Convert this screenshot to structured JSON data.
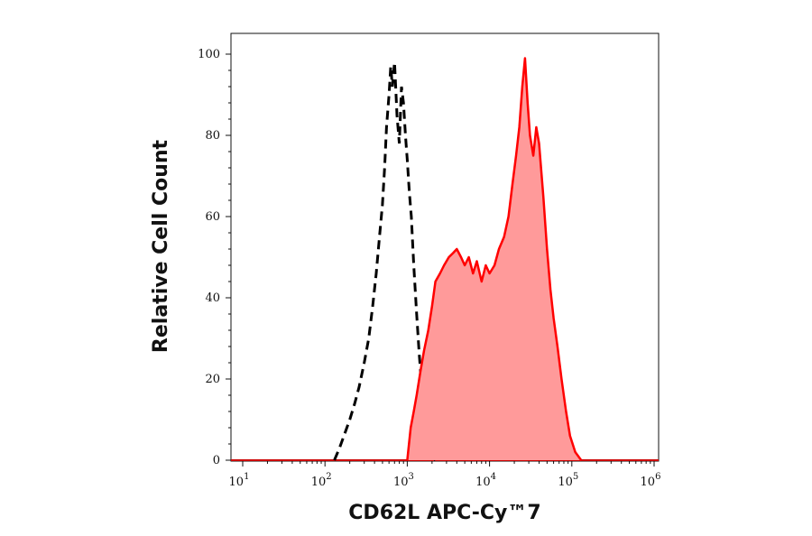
{
  "chart_data": {
    "type": "area",
    "xlabel": "CD62L APC-Cy™7",
    "ylabel": "Relative Cell Count",
    "x_scale": "log",
    "xlim": [
      10,
      1000000
    ],
    "ylim": [
      0,
      100
    ],
    "grid": false,
    "y_ticks": [
      0,
      20,
      40,
      60,
      80,
      100
    ],
    "x_ticks": [
      {
        "base": "10",
        "exp": "1"
      },
      {
        "base": "10",
        "exp": "2"
      },
      {
        "base": "10",
        "exp": "3"
      },
      {
        "base": "10",
        "exp": "4"
      },
      {
        "base": "10",
        "exp": "5"
      },
      {
        "base": "10",
        "exp": "6"
      }
    ],
    "series": [
      {
        "style": "dashed-line",
        "color": "#000000",
        "x": [
          130,
          150,
          170,
          200,
          230,
          260,
          300,
          340,
          380,
          420,
          460,
          500,
          530,
          560,
          600,
          630,
          660,
          700,
          750,
          800,
          850,
          900,
          950,
          1000,
          1060,
          1120,
          1200,
          1300,
          1400,
          1500,
          1600,
          1700,
          1800,
          1900,
          2000,
          2200
        ],
        "y": [
          0,
          3,
          6,
          10,
          14,
          18,
          24,
          30,
          38,
          46,
          55,
          63,
          72,
          82,
          90,
          97,
          92,
          98,
          85,
          78,
          92,
          88,
          80,
          74,
          66,
          60,
          48,
          36,
          26,
          18,
          12,
          8,
          5,
          3,
          1,
          0
        ]
      },
      {
        "style": "filled-area",
        "color": "#ff0000",
        "fill": "#ff9a9a",
        "x": [
          1000,
          1100,
          1200,
          1300,
          1450,
          1600,
          1800,
          2000,
          2200,
          2500,
          2800,
          3200,
          3600,
          4000,
          4500,
          5000,
          5600,
          6300,
          7000,
          8000,
          9000,
          10000,
          11500,
          13000,
          15000,
          17000,
          19000,
          21000,
          23000,
          25000,
          27000,
          29000,
          31000,
          34000,
          37000,
          40000,
          45000,
          50000,
          55000,
          60000,
          67000,
          75000,
          85000,
          95000,
          110000,
          130000
        ],
        "y": [
          0,
          8,
          12,
          16,
          22,
          27,
          32,
          38,
          44,
          46,
          48,
          50,
          51,
          52,
          50,
          48,
          50,
          46,
          49,
          44,
          48,
          46,
          48,
          52,
          55,
          60,
          68,
          75,
          82,
          92,
          99,
          88,
          80,
          75,
          82,
          78,
          65,
          52,
          42,
          35,
          28,
          20,
          12,
          6,
          2,
          0
        ]
      }
    ]
  }
}
